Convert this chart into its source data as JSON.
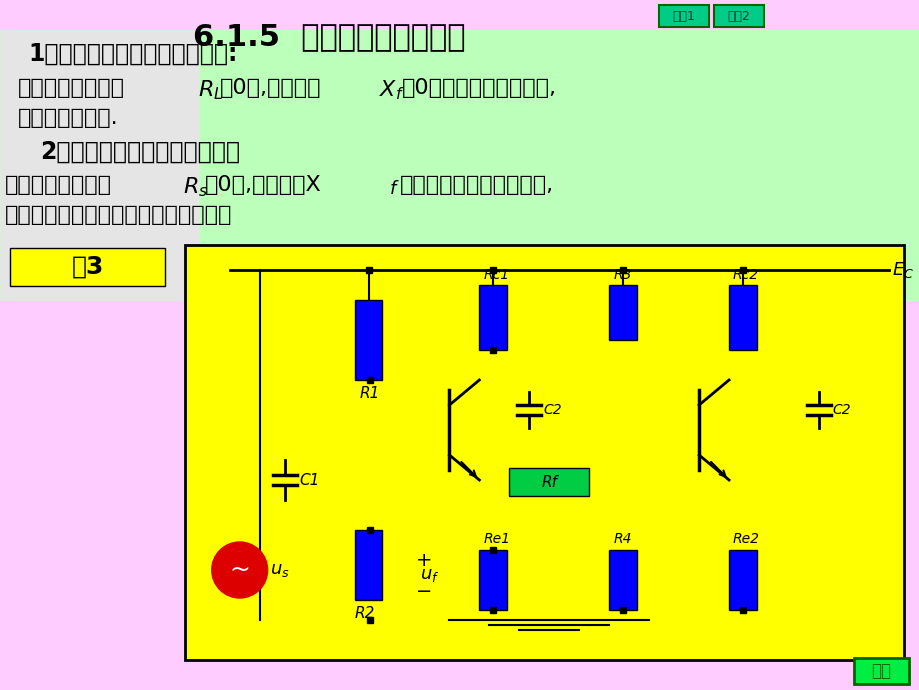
{
  "title": "6.1.5  判别反馈类型的方法",
  "title_fontsize": 22,
  "bg_color": "#ffccff",
  "green_bg": "#99ff99",
  "yellow_bg": "#ffff00",
  "heading1": "1．判断电压反馈还是电流反馈:",
  "text1_line1": "如果输出端短路（",
  "text1_rl": "R",
  "text1_l": "L",
  "text1_mid": "＝0）,反馈信号",
  "text1_xf": "X",
  "text1_f": "f",
  "text1_end": "＝0，则判断为电压反馈,",
  "text1_line2": "否则为电流反馈.",
  "heading2": "2．判断并联反馈还是串联反馈",
  "text2_line1": "如果输入端短路（",
  "text2_rs": "R",
  "text2_s": "s",
  "text2_mid": "＝0）,反馈信号X",
  "text2_f2": "f",
  "text2_end": "加不到基本放大器输入端,",
  "text2_line2": "则判断为并联反馈。否则为串联反馈。",
  "example_label": "例3",
  "休息1": "休息1",
  "休息2": "休息2",
  "返回": "返回"
}
